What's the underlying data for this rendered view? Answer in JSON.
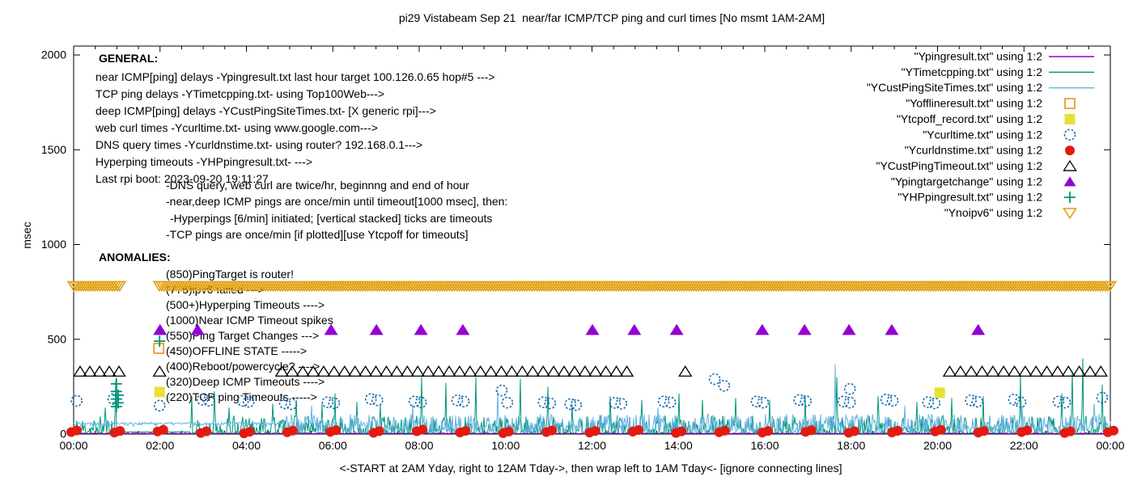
{
  "chart_data": {
    "type": "line+scatter",
    "title": "pi29 Vistabeam Sep 21  near/far ICMP/TCP ping and curl times [No msmt 1AM-2AM]",
    "xlabel": "<-START at 2AM Yday, right to 12AM Tday->, then wrap left to 1AM Tday<- [ignore connecting lines]",
    "ylabel": "msec",
    "ylim": [
      0,
      2000
    ],
    "y_ticks": [
      0,
      500,
      1000,
      1500,
      2000
    ],
    "x_range_hours": [
      0,
      24
    ],
    "x_major_step_hours": 2,
    "x_minor_step_hours": 0.5,
    "x_tick_labels": [
      "00:00",
      "02:00",
      "04:00",
      "06:00",
      "08:00",
      "10:00",
      "12:00",
      "14:00",
      "16:00",
      "18:00",
      "20:00",
      "22:00",
      "00:00"
    ],
    "grid": "off",
    "legend_position": "top-right",
    "annotations": {
      "general_header": "GENERAL:",
      "general": [
        "near ICMP[ping] delays -Ypingresult.txt last hour target 100.126.0.65 hop#5 --->",
        "TCP ping delays -YTimetcpping.txt- using Top100Web--->",
        "deep ICMP[ping] delays -YCustPingSiteTimes.txt- [X generic rpi]--->",
        "web curl times -Ycurltime.txt- using www.google.com--->",
        "DNS query times -Ycurldnstime.txt- using router? 192.168.0.1--->",
        "Hyperping timeouts -YHPpingresult.txt- --->",
        "Last rpi boot: 2023-09-20 19:11:27"
      ],
      "notes": [
        "-DNS query, web curl are twice/hr, beginnng and end of hour",
        "-near,deep ICMP pings are once/min until timeout[1000 msec], then:",
        " -Hyperpings [6/min] initiated; [vertical stacked] ticks are timeouts",
        "-TCP pings are once/min [if plotted][use Ytcpoff for timeouts]"
      ],
      "anomalies_header": "ANOMALIES:",
      "anomalies": [
        "(850)PingTarget is router!",
        "(775)ipv6 failed --->",
        "(500+)Hyperping Timeouts ---->",
        "(1000)Near ICMP Timeout spikes",
        "(550)Ping Target Changes --->",
        "(450)OFFLINE STATE ----->",
        "(400)Reboot/powercycle? ---->",
        "(320)Deep ICMP Timeouts ---->",
        "(220)TCP ping Timeouts ----->"
      ]
    },
    "series": [
      {
        "name": "Ypingresult",
        "legend": "\"Ypingresult.txt\" using 1:2",
        "kind": "noisy-line",
        "color": "#9400d3",
        "segments": [
          {
            "from": 0,
            "to": 24,
            "base": 2,
            "amp": 5,
            "pow": 1.5,
            "seed": 33
          }
        ],
        "spikes": []
      },
      {
        "name": "YTimetcpping",
        "legend": "\"YTimetcpping.txt\" using 1:2",
        "kind": "noisy-line",
        "color": "#009578",
        "segments": [
          {
            "from": 0,
            "to": 1.05,
            "base": 3,
            "amp": 95,
            "pow": 2.2,
            "seed": 11
          },
          {
            "from": 1.05,
            "to": 2.7,
            "base": 10,
            "amp": 3,
            "pow": 1,
            "seed": 12
          },
          {
            "from": 2.7,
            "to": 24,
            "base": 3,
            "amp": 95,
            "pow": 2.2,
            "seed": 13
          }
        ],
        "spikes": [
          [
            0.73,
            140
          ],
          [
            0.97,
            285
          ],
          [
            2.73,
            200
          ],
          [
            3.26,
            225
          ],
          [
            3.6,
            140
          ],
          [
            4.6,
            160
          ],
          [
            5.15,
            180
          ],
          [
            5.75,
            160
          ],
          [
            6.05,
            215
          ],
          [
            6.55,
            170
          ],
          [
            7.1,
            160
          ],
          [
            8.05,
            300
          ],
          [
            8.62,
            270
          ],
          [
            9.32,
            300
          ],
          [
            10.35,
            290
          ],
          [
            10.98,
            250
          ],
          [
            11.55,
            160
          ],
          [
            12.42,
            200
          ],
          [
            13.15,
            180
          ],
          [
            14.02,
            215
          ],
          [
            14.55,
            180
          ],
          [
            15.32,
            190
          ],
          [
            16.12,
            180
          ],
          [
            16.93,
            200
          ],
          [
            17.66,
            300
          ],
          [
            18.62,
            200
          ],
          [
            19.52,
            170
          ],
          [
            20.32,
            190
          ],
          [
            21.05,
            200
          ],
          [
            21.92,
            310
          ],
          [
            22.88,
            215
          ],
          [
            23.12,
            330
          ],
          [
            23.36,
            400
          ],
          [
            23.82,
            260
          ]
        ]
      },
      {
        "name": "YCustPingSiteTimes",
        "legend": "\"YCustPingSiteTimes.txt\" using 1:2",
        "kind": "noisy-line",
        "color": "#66b3e3",
        "segments": [
          {
            "from": 0,
            "to": 4.8,
            "base": 36,
            "amp": 26,
            "pow": 0.35,
            "seed": 22
          },
          {
            "from": 4.8,
            "to": 24,
            "base": 6,
            "amp": 100,
            "pow": 1.8,
            "seed": 23
          }
        ],
        "spikes": [
          [
            5.5,
            150
          ],
          [
            7.85,
            160
          ],
          [
            9.82,
            230
          ],
          [
            13.52,
            140
          ],
          [
            17.63,
            370
          ],
          [
            19.25,
            150
          ],
          [
            21.95,
            150
          ],
          [
            23.63,
            160
          ]
        ]
      },
      {
        "name": "Yofflineresult",
        "legend": "\"Yofflineresult.txt\" using 1:2",
        "kind": "scatter",
        "marker": "square-open",
        "color": "#e8920e",
        "points": [
          [
            1.97,
            452
          ]
        ]
      },
      {
        "name": "Ytcpoff_record",
        "legend": "\"Ytcpoff_record.txt\" using 1:2",
        "kind": "scatter",
        "marker": "square-filled",
        "color": "#e6e234",
        "points": [
          [
            1.99,
            222
          ],
          [
            20.05,
            218
          ]
        ]
      },
      {
        "name": "Ycurltime",
        "legend": "\"Ycurltime.txt\" using 1:2",
        "kind": "scatter",
        "marker": "circle-open",
        "color": "#1a6cb0",
        "points": [
          [
            0.07,
            175
          ],
          [
            0.92,
            185
          ],
          [
            1.99,
            150
          ],
          [
            2.98,
            182
          ],
          [
            3.13,
            176
          ],
          [
            3.92,
            175
          ],
          [
            4.05,
            170
          ],
          [
            4.89,
            162
          ],
          [
            5.04,
            158
          ],
          [
            5.88,
            168
          ],
          [
            6.03,
            163
          ],
          [
            6.88,
            185
          ],
          [
            7.03,
            178
          ],
          [
            7.89,
            172
          ],
          [
            8.04,
            167
          ],
          [
            8.88,
            178
          ],
          [
            9.03,
            172
          ],
          [
            9.91,
            230
          ],
          [
            10.04,
            166
          ],
          [
            10.88,
            168
          ],
          [
            11.03,
            162
          ],
          [
            11.5,
            158
          ],
          [
            11.63,
            153
          ],
          [
            12.53,
            165
          ],
          [
            12.68,
            160
          ],
          [
            13.66,
            172
          ],
          [
            13.81,
            167
          ],
          [
            14.84,
            290
          ],
          [
            15.06,
            255
          ],
          [
            15.81,
            172
          ],
          [
            15.96,
            166
          ],
          [
            16.8,
            180
          ],
          [
            16.95,
            174
          ],
          [
            17.82,
            172
          ],
          [
            17.97,
            166
          ],
          [
            17.97,
            238
          ],
          [
            18.81,
            182
          ],
          [
            18.96,
            176
          ],
          [
            19.78,
            168
          ],
          [
            19.93,
            162
          ],
          [
            20.77,
            178
          ],
          [
            20.92,
            171
          ],
          [
            21.77,
            182
          ],
          [
            21.92,
            168
          ],
          [
            22.8,
            172
          ],
          [
            22.95,
            166
          ],
          [
            23.81,
            192
          ]
        ]
      },
      {
        "name": "Ycurldnstime",
        "legend": "\"Ycurldnstime.txt\" using 1:2",
        "kind": "scatter",
        "marker": "circle-filled-blob",
        "color": "#e31a10",
        "hourly_values": [
          15,
          12,
          18,
          10,
          8,
          14,
          16,
          11,
          19,
          13,
          9,
          15,
          12,
          17,
          10,
          14,
          12,
          16,
          11,
          13,
          18,
          12,
          15,
          10,
          14
        ]
      },
      {
        "name": "YCustPingTimeout",
        "legend": "\"YCustPingTimeout.txt\" using 1:2",
        "kind": "scatter",
        "marker": "triangle-open",
        "color": "#000000",
        "value": 330,
        "runs": [
          {
            "from": 0.15,
            "to": 1.06,
            "step": 0.225
          },
          {
            "from": 4.82,
            "to": 12.86,
            "step": 0.242
          },
          {
            "from": 20.28,
            "to": 23.98,
            "step": 0.25
          }
        ],
        "singles": [
          1.99,
          14.16
        ]
      },
      {
        "name": "Ypingtargetchange",
        "legend": "\"Ypingtargetchange\" using 1:2",
        "kind": "scatter",
        "marker": "triangle-filled",
        "color": "#9400d3",
        "value": 550,
        "times": [
          2.0,
          2.87,
          5.96,
          7.01,
          8.04,
          9.01,
          12.01,
          12.98,
          13.96,
          15.94,
          16.92,
          17.95,
          18.94,
          20.94
        ]
      },
      {
        "name": "YHPpingresult",
        "legend": "\"YHPpingresult.txt\" using 1:2",
        "kind": "scatter",
        "marker": "plus",
        "color": "#009578",
        "points": [
          [
            0.99,
            145
          ],
          [
            0.99,
            185
          ],
          [
            0.99,
            225
          ],
          [
            0.99,
            265
          ],
          [
            1.03,
            165
          ],
          [
            1.03,
            205
          ],
          [
            1.99,
            490
          ]
        ]
      },
      {
        "name": "Ynoipv6",
        "legend": "\"Ynoipv6\" using 1:2",
        "kind": "marker-band",
        "marker": "triangle-down-open",
        "color": "#e0a010",
        "value": 782,
        "band_segments": [
          [
            0,
            1.07
          ],
          [
            1.985,
            24.02
          ]
        ],
        "step_hours": 0.056
      }
    ]
  }
}
